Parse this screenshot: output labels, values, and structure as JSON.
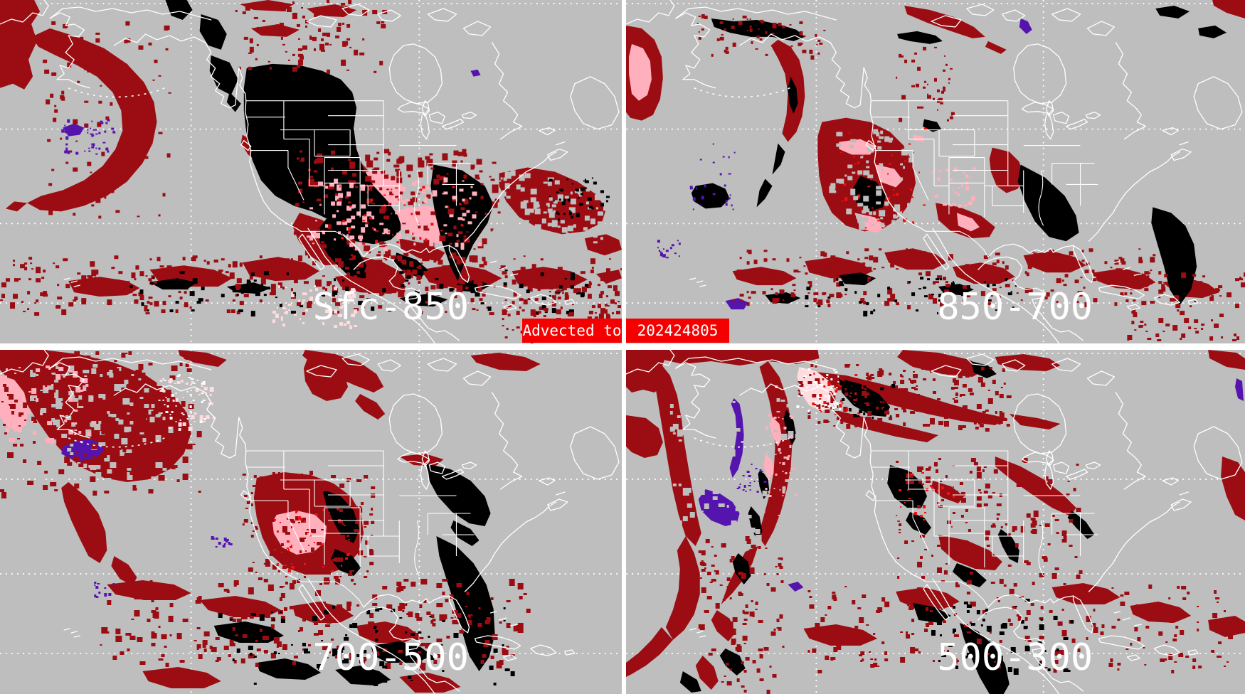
{
  "panels": [
    {
      "id": "sfc-850",
      "label": "Sfc-850"
    },
    {
      "id": "850-700",
      "label": "850-700"
    },
    {
      "id": "700-500",
      "label": "700-500"
    },
    {
      "id": "500-300",
      "label": "500-300"
    }
  ],
  "banner": {
    "left_label": "Advected to",
    "timestamp": "202424805"
  },
  "colors": {
    "background_gray": "#BEBEBE",
    "map_outline_white": "#FFFFFF",
    "grid_dot_white": "#FFFFFF",
    "label_white": "#FFFFFF",
    "banner_red": "#F50000",
    "banner_text_white": "#FFFFFF",
    "moisture_dark_red": "#9B0D12",
    "moisture_bright_red": "#EF1010",
    "moisture_pink": "#FFB0BC",
    "moisture_pale_pink": "#FFDCE0",
    "moisture_black": "#000000",
    "moisture_purple": "#5614AE"
  }
}
